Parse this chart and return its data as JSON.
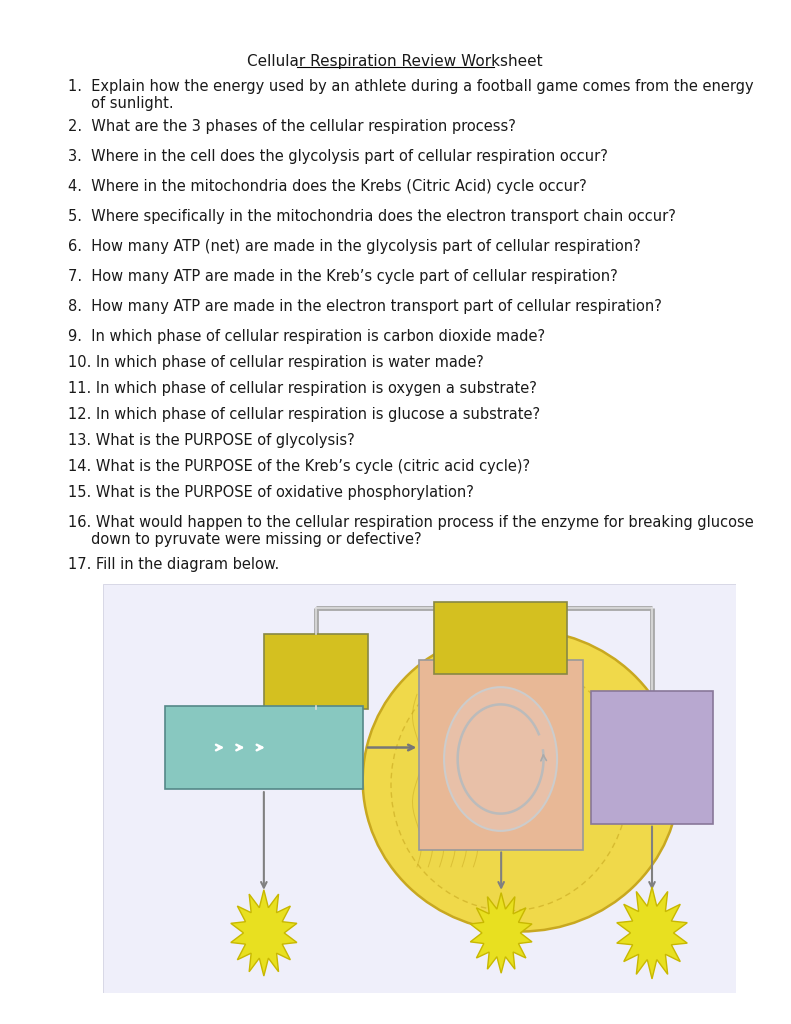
{
  "title": "Cellular Respiration Review Worksheet",
  "questions": [
    "1.  Explain how the energy used by an athlete during a football game comes from the energy\n     of sunlight.",
    "2.  What are the 3 phases of the cellular respiration process?",
    "3.  Where in the cell does the glycolysis part of cellular respiration occur?",
    "4.  Where in the mitochondria does the Krebs (Citric Acid) cycle occur?",
    "5.  Where specifically in the mitochondria does the electron transport chain occur?",
    "6.  How many ATP (net) are made in the glycolysis part of cellular respiration?",
    "7.  How many ATP are made in the Kreb’s cycle part of cellular respiration?",
    "8.  How many ATP are made in the electron transport part of cellular respiration?",
    "9.  In which phase of cellular respiration is carbon dioxide made?",
    "10. In which phase of cellular respiration is water made?",
    "11. In which phase of cellular respiration is oxygen a substrate?",
    "12. In which phase of cellular respiration is glucose a substrate?",
    "13. What is the PURPOSE of glycolysis?",
    "14. What is the PURPOSE of the Kreb’s cycle (citric acid cycle)?",
    "15. What is the PURPOSE of oxidative phosphorylation?",
    "16. What would happen to the cellular respiration process if the enzyme for breaking glucose\n     down to pyruvate were missing or defective?",
    "17. Fill in the diagram below."
  ],
  "bg_color": "#ffffff",
  "text_color": "#1a1a1a",
  "font_size": 10.5,
  "title_font_size": 11,
  "diagram": {
    "mito_blob_color": "#f0d94a",
    "mito_outline_color": "#c8a820",
    "krebs_box_color": "#e8b896",
    "krebs_circle_color": "#e8c0a8",
    "glycolysis_box_color": "#88c8c0",
    "yellow_box1_color": "#d4c020",
    "yellow_box2_color": "#d4c020",
    "purple_box_color": "#b8a8d0",
    "connector_color": "#a0a0a0",
    "arrow_color": "#808080",
    "starburst_color": "#e8e020",
    "starburst_outline": "#c8b800",
    "diagram_bg": "#f0f0f8"
  }
}
